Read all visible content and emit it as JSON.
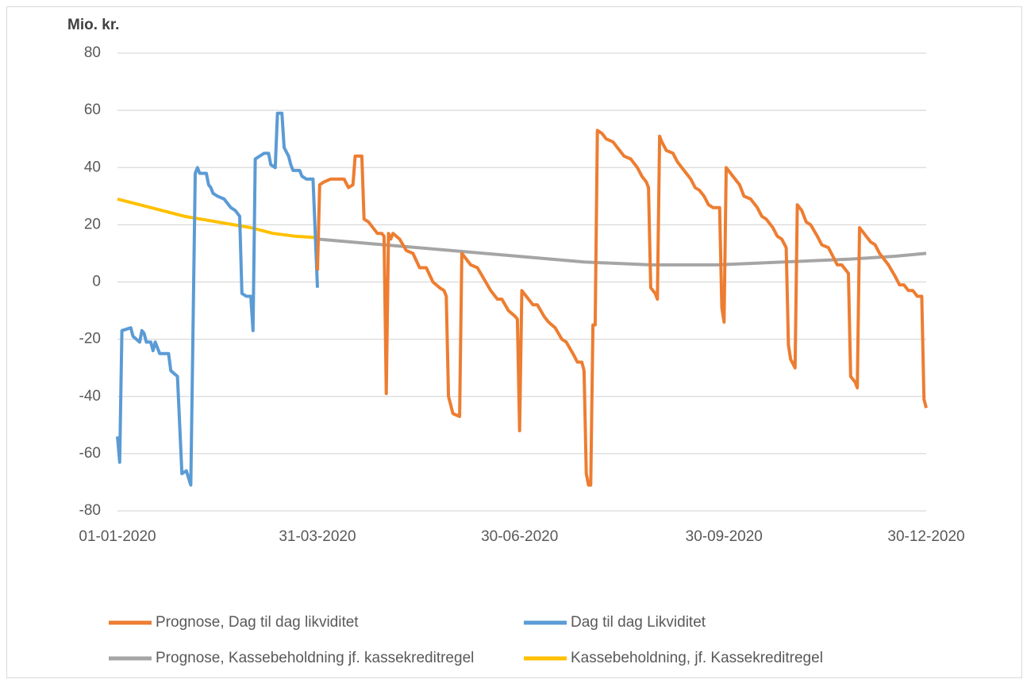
{
  "chart_data": {
    "type": "line",
    "y_label": "Mio. kr.",
    "ylim": [
      -80,
      80
    ],
    "yticks": [
      -80,
      -60,
      -40,
      -20,
      0,
      20,
      40,
      60,
      80
    ],
    "grid": true,
    "xlim": [
      "01-01-2020",
      "30-12-2020"
    ],
    "xticks": [
      "01-01-2020",
      "31-03-2020",
      "30-06-2020",
      "30-09-2020",
      "30-12-2020"
    ],
    "legend": "bottom",
    "series": [
      {
        "name": "Prognose, Dag til dag likviditet",
        "color": "#ed7d31",
        "x": [
          "31-03-2020",
          "01-04-2020",
          "03-04-2020",
          "06-04-2020",
          "12-04-2020",
          "14-04-2020",
          "16-04-2020",
          "17-04-2020",
          "20-04-2020",
          "21-04-2020",
          "23-04-2020",
          "27-04-2020",
          "29-04-2020",
          "30-04-2020",
          "01-05-2020",
          "02-05-2020",
          "03-05-2020",
          "04-05-2020",
          "07-05-2020",
          "10-05-2020",
          "13-05-2020",
          "16-05-2020",
          "19-05-2020",
          "22-05-2020",
          "25-05-2020",
          "27-05-2020",
          "28-05-2020",
          "29-05-2020",
          "31-05-2020",
          "03-06-2020",
          "04-06-2020",
          "06-06-2020",
          "08-06-2020",
          "11-06-2020",
          "14-06-2020",
          "17-06-2020",
          "20-06-2020",
          "22-06-2020",
          "25-06-2020",
          "28-06-2020",
          "29-06-2020",
          "30-06-2020",
          "01-07-2020",
          "04-07-2020",
          "06-07-2020",
          "08-07-2020",
          "11-07-2020",
          "13-07-2020",
          "16-07-2020",
          "19-07-2020",
          "21-07-2020",
          "24-07-2020",
          "26-07-2020",
          "28-07-2020",
          "29-07-2020",
          "30-07-2020",
          "31-07-2020",
          "01-08-2020",
          "02-08-2020",
          "03-08-2020",
          "04-08-2020",
          "06-08-2020",
          "08-08-2020",
          "11-08-2020",
          "14-08-2020",
          "16-08-2020",
          "19-08-2020",
          "22-08-2020",
          "24-08-2020",
          "26-08-2020",
          "27-08-2020",
          "28-08-2020",
          "30-08-2020",
          "31-08-2020",
          "01-09-2020",
          "02-09-2020",
          "04-09-2020",
          "07-09-2020",
          "09-09-2020",
          "11-09-2020",
          "13-09-2020",
          "15-09-2020",
          "17-09-2020",
          "19-09-2020",
          "21-09-2020",
          "23-09-2020",
          "25-09-2020",
          "28-09-2020",
          "29-09-2020",
          "30-09-2020",
          "01-10-2020",
          "03-10-2020",
          "04-10-2020",
          "07-10-2020",
          "09-10-2020",
          "12-10-2020",
          "15-10-2020",
          "17-10-2020",
          "19-10-2020",
          "22-10-2020",
          "24-10-2020",
          "26-10-2020",
          "28-10-2020",
          "29-10-2020",
          "30-10-2020",
          "01-11-2020",
          "02-11-2020",
          "04-11-2020",
          "06-11-2020",
          "08-11-2020",
          "11-11-2020",
          "13-11-2020",
          "16-11-2020",
          "18-11-2020",
          "20-11-2020",
          "22-11-2020",
          "25-11-2020",
          "26-11-2020",
          "28-11-2020",
          "29-11-2020",
          "30-11-2020",
          "03-12-2020",
          "05-12-2020",
          "07-12-2020",
          "09-12-2020",
          "11-12-2020",
          "13-12-2020",
          "16-12-2020",
          "18-12-2020",
          "20-12-2020",
          "22-12-2020",
          "24-12-2020",
          "26-12-2020",
          "28-12-2020",
          "29-12-2020",
          "30-12-2020"
        ],
        "values": [
          4,
          34,
          35,
          36,
          36,
          33,
          34,
          44,
          44,
          22,
          21,
          17,
          17,
          16,
          -39,
          17,
          15,
          17,
          15,
          11,
          10,
          5,
          5,
          0,
          -2,
          -3,
          -5,
          -40,
          -46,
          -47,
          10,
          8,
          6,
          5,
          1,
          -3,
          -6,
          -6,
          -10,
          -12,
          -13,
          -52,
          -3,
          -6,
          -8,
          -8,
          -12,
          -14,
          -16,
          -20,
          -21,
          -25,
          -28,
          -28,
          -31,
          -67,
          -71,
          -71,
          -15,
          -15,
          53,
          52,
          50,
          49,
          46,
          44,
          43,
          40,
          37,
          35,
          33,
          -2,
          -4,
          -6,
          51,
          49,
          46,
          45,
          42,
          40,
          38,
          36,
          33,
          32,
          30,
          27,
          26,
          26,
          -9,
          -14,
          40,
          38,
          37,
          34,
          30,
          29,
          26,
          23,
          22,
          19,
          16,
          15,
          12,
          -22,
          -27,
          -30,
          27,
          25,
          21,
          20,
          16,
          13,
          12,
          9,
          6,
          6,
          3,
          -33,
          -35,
          -37,
          19,
          16,
          14,
          13,
          10,
          8,
          6,
          2,
          -1,
          -1,
          -3,
          -3,
          -5,
          -5,
          -41,
          -44
        ]
      },
      {
        "name": "Dag til dag Likviditet",
        "color": "#5b9bd5",
        "x": [
          "01-01-2020",
          "02-01-2020",
          "03-01-2020",
          "07-01-2020",
          "08-01-2020",
          "11-01-2020",
          "12-01-2020",
          "13-01-2020",
          "14-01-2020",
          "16-01-2020",
          "17-01-2020",
          "18-01-2020",
          "20-01-2020",
          "24-01-2020",
          "25-01-2020",
          "28-01-2020",
          "30-01-2020",
          "01-02-2020",
          "03-02-2020",
          "05-02-2020",
          "06-02-2020",
          "07-02-2020",
          "10-02-2020",
          "11-02-2020",
          "12-02-2020",
          "13-02-2020",
          "15-02-2020",
          "18-02-2020",
          "21-02-2020",
          "23-02-2020",
          "25-02-2020",
          "26-02-2020",
          "28-02-2020",
          "01-03-2020",
          "02-03-2020",
          "03-03-2020",
          "05-03-2020",
          "07-03-2020",
          "09-03-2020",
          "10-03-2020",
          "12-03-2020",
          "13-03-2020",
          "15-03-2020",
          "16-03-2020",
          "18-03-2020",
          "19-03-2020",
          "20-03-2020",
          "23-03-2020",
          "24-03-2020",
          "26-03-2020",
          "29-03-2020",
          "31-03-2020"
        ],
        "values": [
          -54,
          -63,
          -17,
          -16,
          -19,
          -21,
          -17,
          -18,
          -21,
          -21,
          -24,
          -21,
          -25,
          -25,
          -31,
          -33,
          -67,
          -66,
          -71,
          38,
          40,
          38,
          38,
          34,
          33,
          31,
          30,
          29,
          26,
          25,
          23,
          -4,
          -5,
          -5,
          -17,
          43,
          44,
          45,
          45,
          41,
          40,
          59,
          59,
          47,
          44,
          41,
          39,
          39,
          37,
          36,
          36,
          -2
        ]
      },
      {
        "name": "Prognose, Kassebeholdning jf. kassekreditregel",
        "color": "#a5a5a5",
        "x": [
          "31-03-2020",
          "30-04-2020",
          "30-05-2020",
          "29-06-2020",
          "29-07-2020",
          "28-08-2020",
          "27-09-2020",
          "27-10-2020",
          "26-11-2020",
          "16-12-2020",
          "30-12-2020"
        ],
        "values": [
          15,
          13,
          11,
          9,
          7,
          6,
          6,
          7,
          8,
          9,
          10
        ]
      },
      {
        "name": "Kassebeholdning, jf. Kassekreditregel",
        "color": "#ffc000",
        "x": [
          "01-01-2020",
          "16-01-2020",
          "31-01-2020",
          "15-02-2020",
          "01-03-2020",
          "11-03-2020",
          "21-03-2020",
          "31-03-2020"
        ],
        "values": [
          29,
          26,
          23,
          21,
          19,
          17,
          16,
          15.5
        ]
      }
    ]
  }
}
